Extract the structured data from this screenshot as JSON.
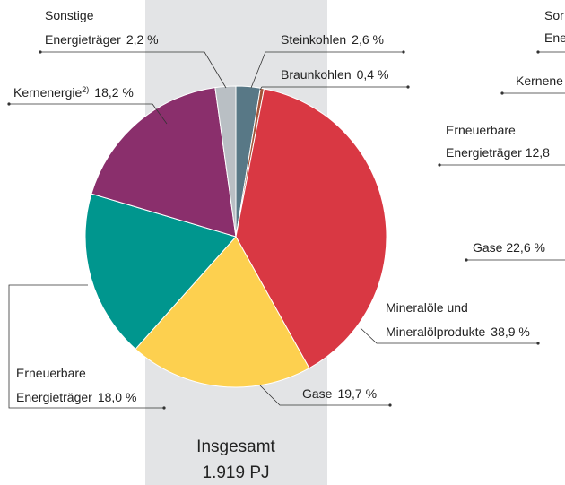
{
  "chart_data": {
    "type": "pie",
    "categories": [
      [
        "Steinkohlen"
      ],
      [
        "Braunkohlen"
      ],
      [
        "Mineralöle und",
        "Mineralölprodukte"
      ],
      [
        "Gase"
      ],
      [
        "Erneuerbare",
        "Energieträger"
      ],
      [
        "Kernenergie"
      ],
      [
        "Sonstige",
        "Energieträger"
      ]
    ],
    "category_notes": [
      null,
      null,
      null,
      null,
      null,
      "2)",
      null
    ],
    "values": [
      2.6,
      0.4,
      38.9,
      19.7,
      18.0,
      18.2,
      2.2
    ],
    "value_labels": [
      "2,6 %",
      "0,4 %",
      "38,9 %",
      "19,7 %",
      "18,0 %",
      "18,2 %",
      "2,2 %"
    ],
    "colors": [
      "#587886",
      "#a5543a",
      "#d93843",
      "#fdd04f",
      "#00968e",
      "#8a2f6c",
      "#b9bfc4"
    ],
    "total_label": "Insgesamt",
    "total_value": "1.919 PJ"
  },
  "cropped_neighbor": {
    "labels": [
      [
        "Sor",
        "Ene"
      ],
      [
        "Kernene"
      ],
      [
        "Erneuerbare",
        "Energieträger  12,8"
      ],
      [
        "Gase  22,6 %"
      ]
    ]
  }
}
